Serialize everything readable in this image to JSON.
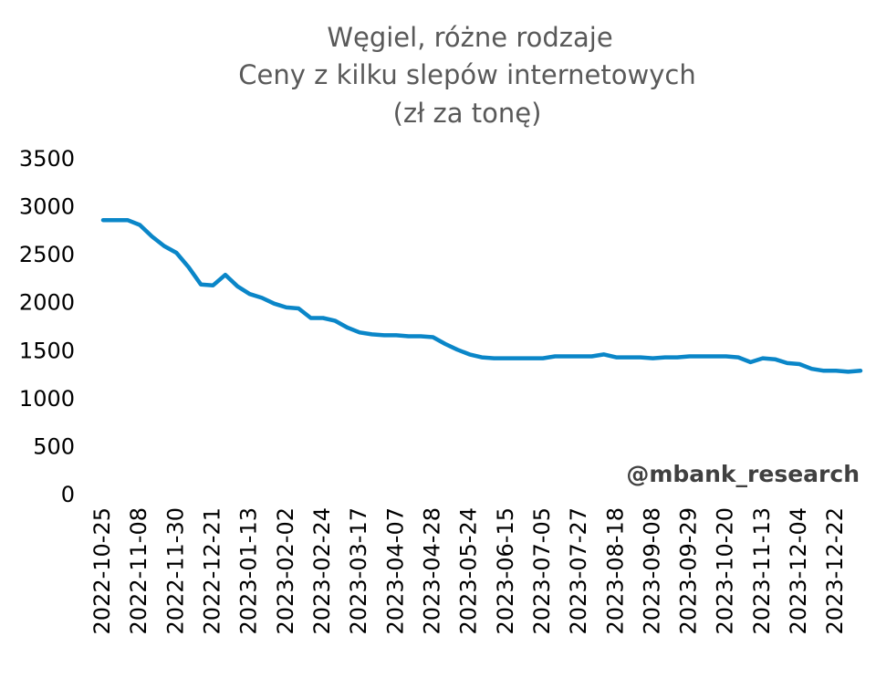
{
  "chart_data": {
    "type": "line",
    "title": [
      "Węgiel, różne rodzaje",
      "Ceny z kilku slepów internetowych",
      "(zł za tonę)"
    ],
    "annotation": "@mbank_research",
    "categories": [
      "2022-10-25",
      null,
      null,
      "2022-11-08",
      null,
      null,
      "2022-11-30",
      null,
      null,
      "2022-12-21",
      null,
      null,
      "2023-01-13",
      null,
      null,
      "2023-02-02",
      null,
      null,
      "2023-02-24",
      null,
      null,
      "2023-03-17",
      null,
      null,
      "2023-04-07",
      null,
      null,
      "2023-04-28",
      null,
      null,
      "2023-05-24",
      null,
      null,
      "2023-06-15",
      null,
      null,
      "2023-07-05",
      null,
      null,
      "2023-07-27",
      null,
      null,
      "2023-08-18",
      null,
      null,
      "2023-09-08",
      null,
      null,
      "2023-09-29",
      null,
      null,
      "2023-10-20",
      null,
      null,
      "2023-11-13",
      null,
      null,
      "2023-12-04",
      null,
      null,
      "2023-12-22",
      null,
      null
    ],
    "values": [
      2870,
      2870,
      2870,
      2820,
      2700,
      2600,
      2530,
      2380,
      2200,
      2190,
      2300,
      2180,
      2100,
      2060,
      2000,
      1960,
      1950,
      1850,
      1850,
      1820,
      1750,
      1700,
      1680,
      1670,
      1670,
      1660,
      1660,
      1650,
      1580,
      1520,
      1470,
      1440,
      1430,
      1430,
      1430,
      1430,
      1430,
      1450,
      1450,
      1450,
      1450,
      1470,
      1440,
      1440,
      1440,
      1430,
      1440,
      1440,
      1450,
      1450,
      1450,
      1450,
      1440,
      1390,
      1430,
      1420,
      1380,
      1370,
      1320,
      1300,
      1300,
      1290,
      1300
    ],
    "color": "#0a86c8",
    "ylim": [
      0,
      3500
    ],
    "yticks": [
      0,
      500,
      1000,
      1500,
      2000,
      2500,
      3000,
      3500
    ],
    "grid": false
  }
}
